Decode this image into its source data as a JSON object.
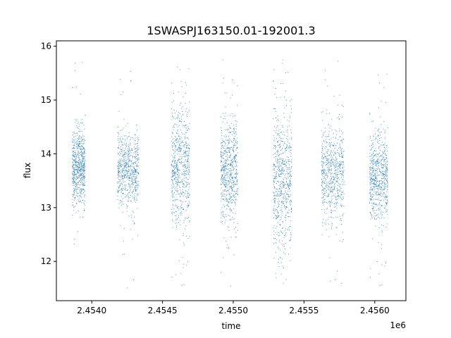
{
  "chart_data": {
    "type": "scatter",
    "title": "1SWASPJ163150.01-192001.3",
    "xlabel": "time",
    "ylabel": "flux",
    "x_offset_label": "1e6",
    "xlim": [
      2.45375,
      2.45622
    ],
    "ylim": [
      11.27,
      16.1
    ],
    "x_ticks": [
      2.454,
      2.4545,
      2.455,
      2.4555,
      2.456
    ],
    "x_tick_labels": [
      "2.4540",
      "2.4545",
      "2.4550",
      "2.4555",
      "2.4560"
    ],
    "y_ticks": [
      12,
      13,
      14,
      15,
      16
    ],
    "y_tick_labels": [
      "12",
      "13",
      "14",
      "15",
      "16"
    ],
    "grid": false,
    "marker_color": "#1f77b4",
    "series": [
      {
        "clusters": [
          {
            "x_range": [
              2.45386,
              2.45395
            ],
            "center": 13.75,
            "spread": 0.35,
            "extremes": [
              12.2,
              15.8
            ]
          },
          {
            "x_range": [
              2.45418,
              2.45433
            ],
            "center": 13.7,
            "spread": 0.35,
            "extremes": [
              11.5,
              15.75
            ]
          },
          {
            "x_range": [
              2.45456,
              2.45469
            ],
            "center": 13.75,
            "spread": 0.55,
            "extremes": [
              11.5,
              15.7
            ]
          },
          {
            "x_range": [
              2.45491,
              2.45503
            ],
            "center": 13.65,
            "spread": 0.45,
            "extremes": [
              11.5,
              15.85
            ]
          },
          {
            "x_range": [
              2.45528,
              2.45541
            ],
            "center": 13.55,
            "spread": 0.65,
            "extremes": [
              11.6,
              15.8
            ]
          },
          {
            "x_range": [
              2.45562,
              2.45578
            ],
            "center": 13.65,
            "spread": 0.45,
            "extremes": [
              11.5,
              15.8
            ]
          },
          {
            "x_range": [
              2.45596,
              2.45609
            ],
            "center": 13.6,
            "spread": 0.4,
            "extremes": [
              11.5,
              15.6
            ]
          }
        ]
      }
    ]
  }
}
